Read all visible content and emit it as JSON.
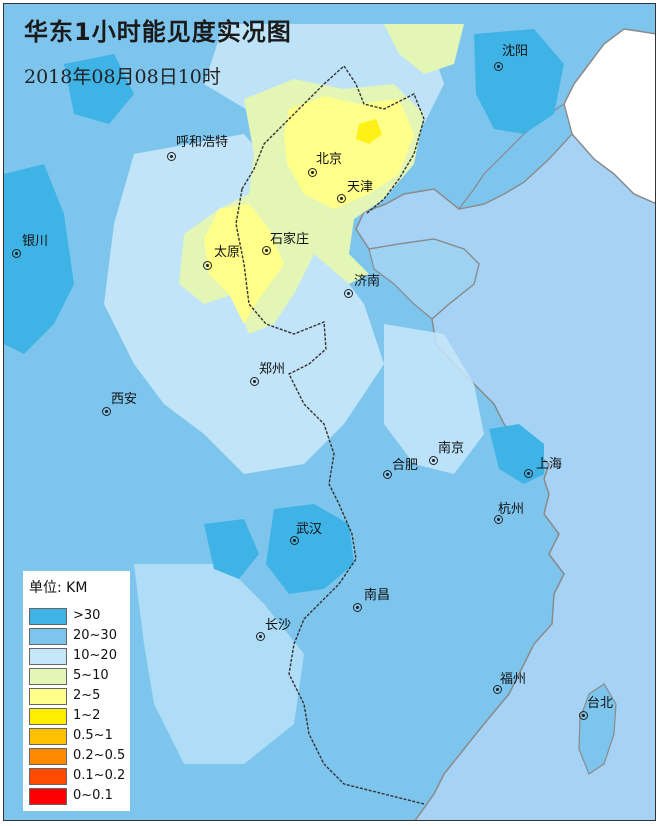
{
  "title": "华东1小时能见度实况图",
  "subtitle": "2018年08月08日10时",
  "legend": {
    "unit_label": "单位:  KM",
    "items": [
      {
        "label": ">30",
        "color": "#3fb3e6"
      },
      {
        "label": "20~30",
        "color": "#7ec5ee"
      },
      {
        "label": "10~20",
        "color": "#c5e6f9"
      },
      {
        "label": "5~10",
        "color": "#e3f6b5"
      },
      {
        "label": "2~5",
        "color": "#ffff8a"
      },
      {
        "label": "1~2",
        "color": "#ffee00"
      },
      {
        "label": "0.5~1",
        "color": "#ffc000"
      },
      {
        "label": "0.2~0.5",
        "color": "#ff8a00"
      },
      {
        "label": "0.1~0.2",
        "color": "#ff4b00"
      },
      {
        "label": "0~0.1",
        "color": "#ff0000"
      }
    ]
  },
  "cities": [
    {
      "name": "沈阳"
    },
    {
      "name": "呼和浩特"
    },
    {
      "name": "北京"
    },
    {
      "name": "天津"
    },
    {
      "name": "银川"
    },
    {
      "name": "太原"
    },
    {
      "name": "石家庄"
    },
    {
      "name": "济南"
    },
    {
      "name": "郑州"
    },
    {
      "name": "西安"
    },
    {
      "name": "南京"
    },
    {
      "name": "合肥"
    },
    {
      "name": "上海"
    },
    {
      "name": "杭州"
    },
    {
      "name": "武汉"
    },
    {
      "name": "南昌"
    },
    {
      "name": "长沙"
    },
    {
      "name": "福州"
    },
    {
      "name": "台北"
    }
  ],
  "colors": {
    "sea": "#a6d3f5",
    "land_far": "#ffffff",
    "border": "#8a8a8a",
    "province_border": "#333333"
  }
}
